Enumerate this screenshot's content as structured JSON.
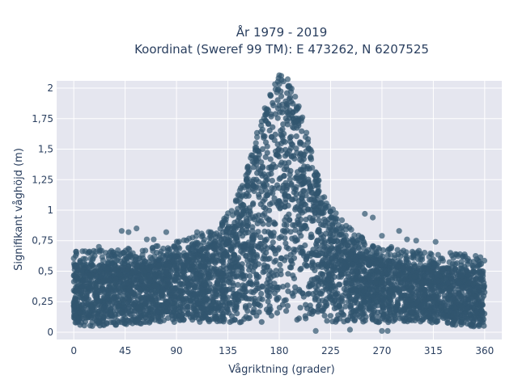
{
  "chart_data": {
    "type": "scatter",
    "title": [
      "År 1979 - 2019",
      "Koordinat (Sweref 99 TM): E 473262, N 6207525"
    ],
    "xlabel": "Vågriktning (grader)",
    "ylabel": "Signifikant våghöjd (m)",
    "xlim": [
      -15,
      375
    ],
    "ylim": [
      -0.06,
      2.06
    ],
    "x_ticks": [
      0,
      45,
      90,
      135,
      180,
      225,
      270,
      315,
      360
    ],
    "x_tick_labels": [
      "0",
      "45",
      "90",
      "135",
      "180",
      "225",
      "270",
      "315",
      "360"
    ],
    "y_ticks": [
      0,
      0.25,
      0.5,
      0.75,
      1,
      1.25,
      1.5,
      1.75,
      2
    ],
    "y_tick_labels": [
      "0",
      "0,25",
      "0,5",
      "0,75",
      "1",
      "1,25",
      "1,5",
      "1,75",
      "2"
    ],
    "grid": true,
    "marker_color": "#31566f",
    "plot_background": "#e5e6ef",
    "envelope": {
      "direction_deg": [
        0,
        20,
        40,
        60,
        80,
        100,
        120,
        140,
        150,
        160,
        170,
        180,
        190,
        200,
        210,
        220,
        230,
        240,
        260,
        280,
        300,
        320,
        340,
        360
      ],
      "dense_max_hs_m": [
        0.55,
        0.55,
        0.56,
        0.58,
        0.6,
        0.65,
        0.72,
        0.92,
        1.15,
        1.5,
        1.8,
        2.0,
        1.95,
        1.65,
        1.3,
        1.0,
        0.85,
        0.75,
        0.62,
        0.58,
        0.55,
        0.53,
        0.52,
        0.5
      ],
      "dense_min_hs_m": [
        0.04,
        0.05,
        0.06,
        0.07,
        0.08,
        0.08,
        0.08,
        0.08,
        0.08,
        0.08,
        0.08,
        0.08,
        0.08,
        0.08,
        0.08,
        0.08,
        0.08,
        0.08,
        0.08,
        0.08,
        0.08,
        0.07,
        0.05,
        0.04
      ]
    },
    "outliers": [
      {
        "x": 2,
        "y": 0.66
      },
      {
        "x": 10,
        "y": 0.6
      },
      {
        "x": 22,
        "y": 0.7
      },
      {
        "x": 42,
        "y": 0.83
      },
      {
        "x": 48,
        "y": 0.82
      },
      {
        "x": 55,
        "y": 0.85
      },
      {
        "x": 64,
        "y": 0.76
      },
      {
        "x": 70,
        "y": 0.76
      },
      {
        "x": 81,
        "y": 0.82
      },
      {
        "x": 108,
        "y": 0.82
      },
      {
        "x": 120,
        "y": 0.82
      },
      {
        "x": 125,
        "y": 0.81
      },
      {
        "x": 133,
        "y": 0.9
      },
      {
        "x": 255,
        "y": 0.97
      },
      {
        "x": 262,
        "y": 0.94
      },
      {
        "x": 270,
        "y": 0.79
      },
      {
        "x": 285,
        "y": 0.83
      },
      {
        "x": 292,
        "y": 0.76
      },
      {
        "x": 300,
        "y": 0.75
      },
      {
        "x": 317,
        "y": 0.74
      },
      {
        "x": 330,
        "y": 0.65
      },
      {
        "x": 343,
        "y": 0.62
      },
      {
        "x": 357,
        "y": 0.56
      },
      {
        "x": 212,
        "y": 0.01
      },
      {
        "x": 242,
        "y": 0.02
      },
      {
        "x": 270,
        "y": 0.01
      },
      {
        "x": 275,
        "y": 0.01
      },
      {
        "x": 355,
        "y": 0.05
      }
    ]
  }
}
